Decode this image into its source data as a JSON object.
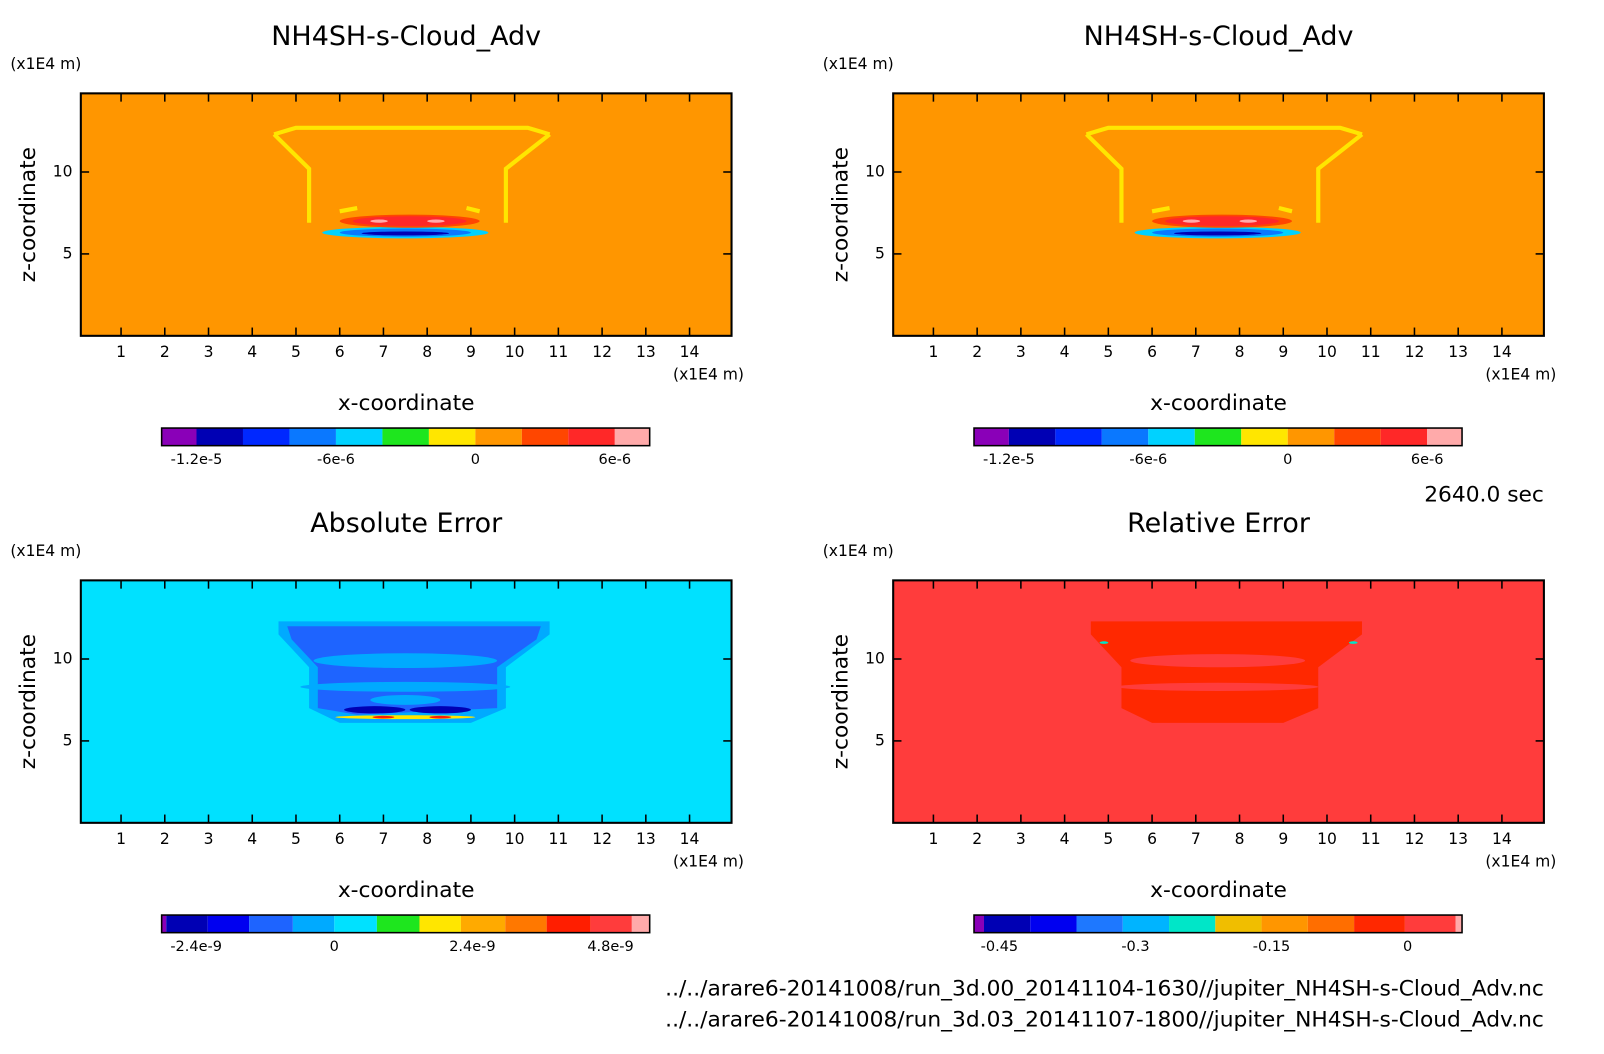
{
  "chart_data": [
    {
      "type": "contour",
      "title": "NH4SH-s-Cloud_Adv",
      "x_label": "x-coordinate",
      "y_label": "z-coordinate",
      "x_unit": "(x1E4 m)",
      "y_unit": "(x1E4 m)",
      "xlim": [
        0.08,
        14.96
      ],
      "ylim": [
        0,
        14.8
      ],
      "xticks": [
        1,
        2,
        3,
        4,
        5,
        6,
        7,
        8,
        9,
        10,
        11,
        12,
        13,
        14
      ],
      "yticks": [
        5,
        10
      ],
      "colorbar": {
        "levels": [
          -1.35e-05,
          -1.2e-05,
          -1e-05,
          -8e-06,
          -6e-06,
          -4e-06,
          -2e-06,
          0,
          2e-06,
          4e-06,
          6e-06,
          7.5e-06
        ],
        "colors": [
          "#8a00b8",
          "#0000b4",
          "#0028ff",
          "#0a78ff",
          "#00d2ff",
          "#1ee61e",
          "#ffe600",
          "#ff9600",
          "#ff4600",
          "#ff2828",
          "#ffaaaa"
        ],
        "ticks": [
          {
            "value": -1.2e-05,
            "label": "-1.2e-5"
          },
          {
            "value": -6e-06,
            "label": "-6e-6"
          },
          0,
          {
            "value": 6e-06,
            "label": "6e-6"
          }
        ]
      }
    },
    {
      "type": "contour",
      "title": "NH4SH-s-Cloud_Adv",
      "x_label": "x-coordinate",
      "y_label": "z-coordinate",
      "x_unit": "(x1E4 m)",
      "y_unit": "(x1E4 m)",
      "xlim": [
        0.08,
        14.96
      ],
      "ylim": [
        0,
        14.8
      ],
      "xticks": [
        1,
        2,
        3,
        4,
        5,
        6,
        7,
        8,
        9,
        10,
        11,
        12,
        13,
        14
      ],
      "yticks": [
        5,
        10
      ],
      "colorbar": {
        "levels": [
          -1.35e-05,
          -1.2e-05,
          -1e-05,
          -8e-06,
          -6e-06,
          -4e-06,
          -2e-06,
          0,
          2e-06,
          4e-06,
          6e-06,
          7.5e-06
        ],
        "colors": [
          "#8a00b8",
          "#0000b4",
          "#0028ff",
          "#0a78ff",
          "#00d2ff",
          "#1ee61e",
          "#ffe600",
          "#ff9600",
          "#ff4600",
          "#ff2828",
          "#ffaaaa"
        ],
        "ticks": [
          {
            "value": -1.2e-05,
            "label": "-1.2e-5"
          },
          {
            "value": -6e-06,
            "label": "-6e-6"
          },
          0,
          {
            "value": 6e-06,
            "label": "6e-6"
          }
        ]
      }
    },
    {
      "type": "contour",
      "title": "Absolute Error",
      "x_label": "x-coordinate",
      "y_label": "z-coordinate",
      "x_unit": "(x1E4 m)",
      "y_unit": "(x1E4 m)",
      "xlim": [
        0.08,
        14.96
      ],
      "ylim": [
        0,
        14.8
      ],
      "xticks": [
        1,
        2,
        3,
        4,
        5,
        6,
        7,
        8,
        9,
        10,
        11,
        12,
        13,
        14
      ],
      "yticks": [
        5,
        10
      ],
      "colorbar": {
        "levels": [
          -3e-09,
          -2.92e-09,
          -2.2e-09,
          -1.48e-09,
          -7.2e-10,
          0,
          7.4e-10,
          1.48e-09,
          2.2e-09,
          2.97e-09,
          3.69e-09,
          4.45e-09,
          5.17e-09,
          5.48e-09
        ],
        "colors": [
          "#8a00b8",
          "#0000b4",
          "#0000f0",
          "#1e64ff",
          "#00aaff",
          "#00e1ff",
          "#1ee61e",
          "#ffe600",
          "#ffaa00",
          "#ff7800",
          "#ff1e00",
          "#ff3c3c",
          "#ffaaaa"
        ],
        "ticks": [
          {
            "value": -2.4e-09,
            "label": "-2.4e-9"
          },
          0,
          {
            "value": 2.4e-09,
            "label": "2.4e-9"
          },
          {
            "value": 4.8e-09,
            "label": "4.8e-9"
          }
        ]
      }
    },
    {
      "type": "contour",
      "title": "Relative Error",
      "x_label": "x-coordinate",
      "y_label": "z-coordinate",
      "x_unit": "(x1E4 m)",
      "y_unit": "(x1E4 m)",
      "xlim": [
        0.08,
        14.96
      ],
      "ylim": [
        0,
        14.8
      ],
      "xticks": [
        1,
        2,
        3,
        4,
        5,
        6,
        7,
        8,
        9,
        10,
        11,
        12,
        13,
        14
      ],
      "yticks": [
        5,
        10
      ],
      "colorbar": {
        "levels": [
          -0.478,
          -0.467,
          -0.416,
          -0.365,
          -0.314,
          -0.263,
          -0.212,
          -0.161,
          -0.11,
          -0.059,
          -0.003,
          0.053,
          0.06
        ],
        "colors": [
          "#8a00b8",
          "#0000b4",
          "#0000f0",
          "#1e78ff",
          "#00b4ff",
          "#00e6c8",
          "#f0be00",
          "#ff9600",
          "#ff6e00",
          "#ff2800",
          "#ff3c3c",
          "#ffaaaa"
        ],
        "ticks": [
          {
            "value": -0.45,
            "label": "-0.45"
          },
          {
            "value": -0.3,
            "label": "-0.3"
          },
          {
            "value": -0.15,
            "label": "-0.15"
          },
          0
        ]
      }
    }
  ],
  "time_label": "2640.0 sec",
  "file_paths": [
    "../../arare6-20141008/run_3d.00_20141104-1630//jupiter_NH4SH-s-Cloud_Adv.nc",
    "../../arare6-20141008/run_3d.03_20141107-1800//jupiter_NH4SH-s-Cloud_Adv.nc"
  ]
}
